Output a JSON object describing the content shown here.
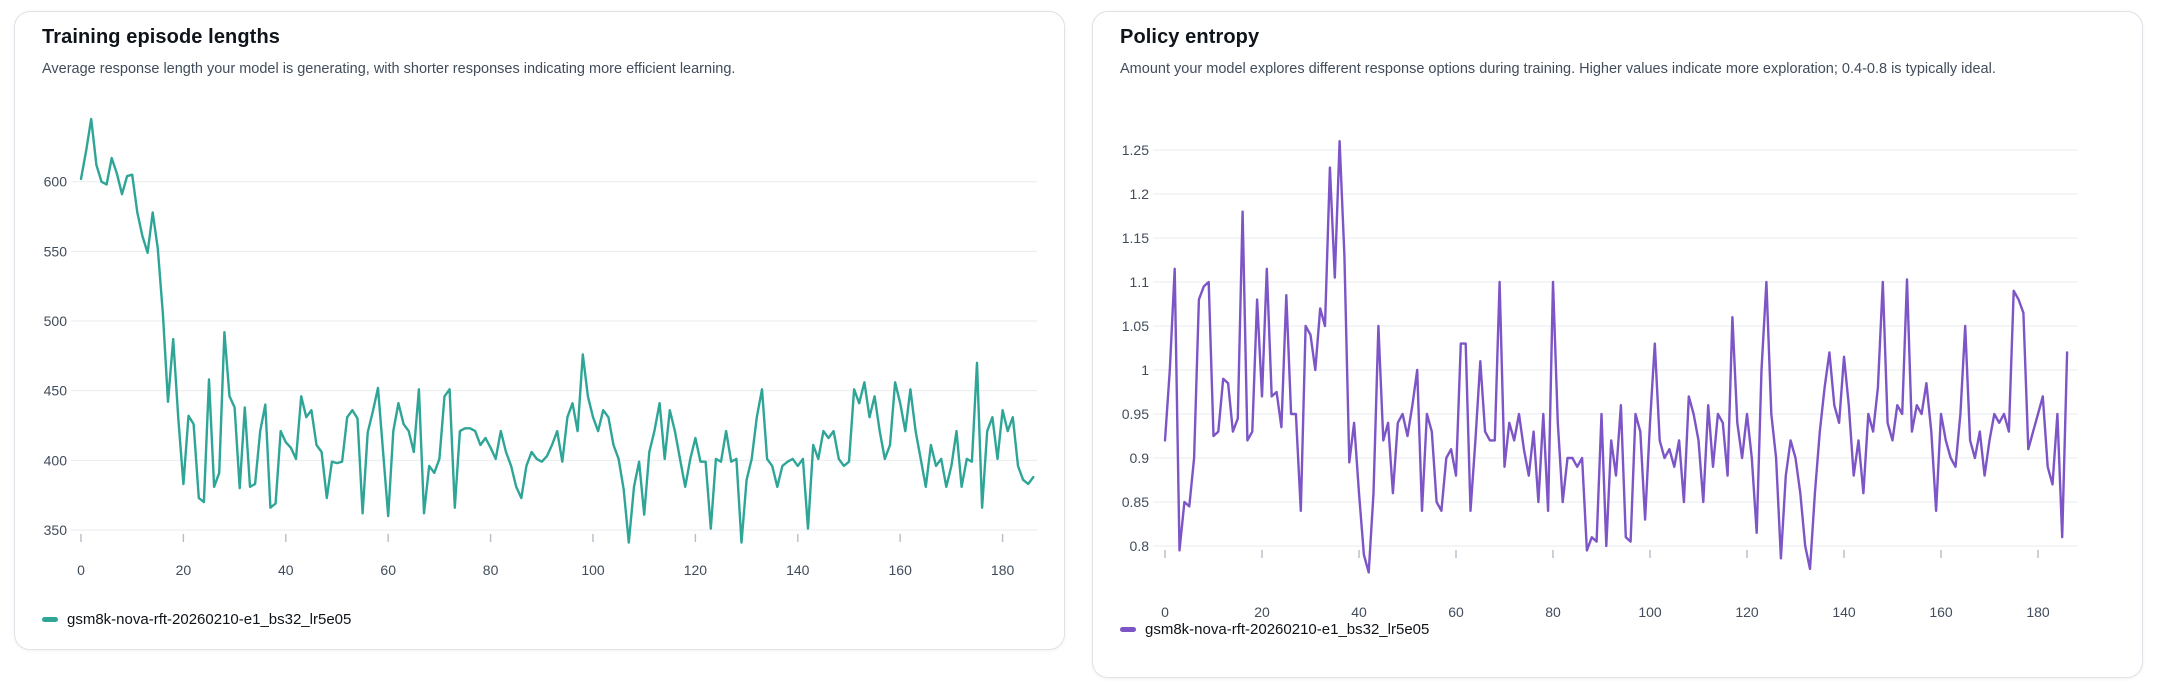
{
  "cards": [
    {
      "title": "Training episode lengths",
      "description": "Average response length your model is generating, with shorter responses indicating more efficient learning.",
      "legend_label": "gsm8k-nova-rft-20260210-e1_bs32_lr5e05",
      "accent_color": "#2ea597",
      "chart_data": {
        "type": "line",
        "title": "Training episode lengths",
        "xlabel": "",
        "ylabel": "",
        "xlim": [
          0,
          190
        ],
        "ylim": [
          345,
          655
        ],
        "x_ticks": [
          0,
          20,
          40,
          60,
          80,
          100,
          120,
          140,
          160,
          180
        ],
        "y_ticks": [
          350,
          400,
          450,
          500,
          550,
          600
        ],
        "y_tick_labels": [
          "350",
          "400",
          "450",
          "500",
          "550",
          "600"
        ],
        "grid": "horizontal",
        "legend_position": "bottom",
        "series": [
          {
            "name": "gsm8k-nova-rft-20260210-e1_bs32_lr5e05",
            "color": "#2ea597",
            "x_start": 0,
            "x_step": 1,
            "values": [
              602,
              622,
              645,
              612,
              600,
              598,
              617,
              606,
              591,
              604,
              605,
              578,
              561,
              549,
              578,
              552,
              505,
              442,
              487,
              430,
              383,
              432,
              426,
              373,
              370,
              458,
              381,
              391,
              492,
              446,
              438,
              380,
              438,
              381,
              383,
              421,
              440,
              366,
              369,
              421,
              413,
              409,
              401,
              446,
              431,
              436,
              411,
              406,
              373,
              399,
              398,
              399,
              431,
              436,
              430,
              362,
              420,
              435,
              452,
              406,
              360,
              421,
              441,
              426,
              421,
              406,
              451,
              362,
              396,
              391,
              401,
              446,
              451,
              366,
              421,
              423,
              423,
              421,
              411,
              416,
              409,
              401,
              421,
              406,
              396,
              381,
              373,
              396,
              406,
              401,
              399,
              403,
              411,
              421,
              399,
              431,
              441,
              421,
              476,
              446,
              431,
              421,
              436,
              431,
              411,
              401,
              379,
              341,
              381,
              399,
              361,
              406,
              421,
              441,
              401,
              436,
              421,
              401,
              381,
              401,
              416,
              399,
              399,
              351,
              401,
              399,
              421,
              399,
              401,
              341,
              386,
              401,
              431,
              451,
              401,
              396,
              381,
              396,
              399,
              401,
              396,
              401,
              351,
              411,
              401,
              421,
              416,
              421,
              401,
              396,
              399,
              451,
              441,
              456,
              431,
              446,
              421,
              401,
              411,
              456,
              441,
              421,
              451,
              421,
              401,
              381,
              411,
              396,
              401,
              381,
              396,
              421,
              381,
              401,
              399,
              470,
              366,
              421,
              431,
              401,
              436,
              421,
              431,
              396,
              386,
              383,
              388
            ]
          }
        ]
      }
    },
    {
      "title": "Policy entropy",
      "description": "Amount your model explores different response options during training. Higher values indicate more exploration; 0.4-0.8 is typically ideal.",
      "legend_label": "gsm8k-nova-rft-20260210-e1_bs32_lr5e05",
      "accent_color": "#7d55c7",
      "chart_data": {
        "type": "line",
        "title": "Policy entropy",
        "xlabel": "",
        "ylabel": "",
        "xlim": [
          0,
          190
        ],
        "ylim": [
          0.765,
          1.28
        ],
        "x_ticks": [
          0,
          20,
          40,
          60,
          80,
          100,
          120,
          140,
          160,
          180
        ],
        "y_ticks": [
          0.8,
          0.85,
          0.9,
          0.95,
          1.0,
          1.05,
          1.1,
          1.15,
          1.2,
          1.25
        ],
        "y_tick_labels": [
          "0.8",
          "0.85",
          "0.9",
          "0.95",
          "1",
          "1.05",
          "1.1",
          "1.15",
          "1.2",
          "1.25"
        ],
        "grid": "horizontal",
        "legend_position": "bottom",
        "series": [
          {
            "name": "gsm8k-nova-rft-20260210-e1_bs32_lr5e05",
            "color": "#7d55c7",
            "x_start": 0,
            "x_step": 1,
            "values": [
              0.92,
              1.0,
              1.115,
              0.795,
              0.85,
              0.845,
              0.9,
              1.08,
              1.095,
              1.1,
              0.925,
              0.93,
              0.99,
              0.985,
              0.93,
              0.945,
              1.18,
              0.92,
              0.93,
              1.08,
              0.97,
              1.115,
              0.97,
              0.975,
              0.935,
              1.085,
              0.95,
              0.95,
              0.84,
              1.05,
              1.04,
              1.0,
              1.07,
              1.05,
              1.23,
              1.105,
              1.26,
              1.13,
              0.895,
              0.94,
              0.86,
              0.79,
              0.77,
              0.86,
              1.05,
              0.92,
              0.94,
              0.86,
              0.94,
              0.95,
              0.925,
              0.96,
              1.0,
              0.84,
              0.95,
              0.93,
              0.85,
              0.84,
              0.9,
              0.91,
              0.88,
              1.03,
              1.03,
              0.84,
              0.92,
              1.01,
              0.93,
              0.92,
              0.92,
              1.1,
              0.89,
              0.94,
              0.92,
              0.95,
              0.91,
              0.88,
              0.93,
              0.85,
              0.95,
              0.84,
              1.1,
              0.94,
              0.85,
              0.9,
              0.9,
              0.89,
              0.9,
              0.795,
              0.81,
              0.805,
              0.95,
              0.8,
              0.92,
              0.88,
              0.96,
              0.81,
              0.805,
              0.95,
              0.93,
              0.83,
              0.94,
              1.03,
              0.92,
              0.9,
              0.91,
              0.89,
              0.92,
              0.85,
              0.97,
              0.95,
              0.92,
              0.85,
              0.96,
              0.89,
              0.95,
              0.94,
              0.88,
              1.06,
              0.94,
              0.9,
              0.95,
              0.9,
              0.815,
              1.0,
              1.1,
              0.95,
              0.9,
              0.786,
              0.88,
              0.92,
              0.9,
              0.86,
              0.8,
              0.774,
              0.86,
              0.93,
              0.98,
              1.02,
              0.96,
              0.94,
              1.015,
              0.96,
              0.88,
              0.92,
              0.86,
              0.95,
              0.93,
              0.98,
              1.1,
              0.94,
              0.92,
              0.96,
              0.95,
              1.103,
              0.93,
              0.96,
              0.95,
              0.985,
              0.93,
              0.84,
              0.95,
              0.92,
              0.9,
              0.89,
              0.95,
              1.05,
              0.92,
              0.9,
              0.93,
              0.88,
              0.92,
              0.95,
              0.94,
              0.95,
              0.93,
              1.09,
              1.08,
              1.065,
              0.91,
              0.93,
              0.95,
              0.97,
              0.89,
              0.87,
              0.95,
              0.81,
              1.02
            ]
          }
        ]
      }
    }
  ]
}
